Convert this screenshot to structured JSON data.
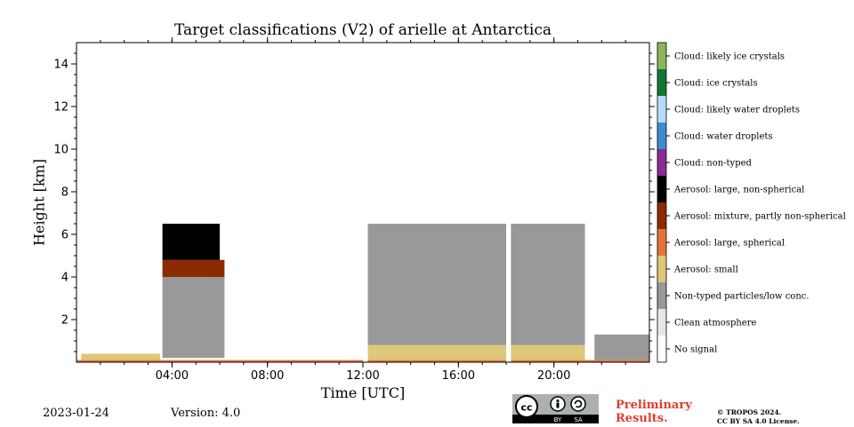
{
  "chart_data": {
    "type": "heatmap",
    "title": "Target classifications (V2) of arielle at Antarctica",
    "xlabel": "Time [UTC]",
    "ylabel": "Height [km]",
    "x_unit": "hours UTC",
    "xlim": [
      0,
      24
    ],
    "ylim": [
      0,
      15
    ],
    "x_ticks": [
      {
        "value": 4,
        "label": "04:00"
      },
      {
        "value": 8,
        "label": "08:00"
      },
      {
        "value": 12,
        "label": "12:00"
      },
      {
        "value": 16,
        "label": "16:00"
      },
      {
        "value": 20,
        "label": "20:00"
      }
    ],
    "y_ticks": [
      {
        "value": 2,
        "label": "2"
      },
      {
        "value": 4,
        "label": "4"
      },
      {
        "value": 6,
        "label": "6"
      },
      {
        "value": 8,
        "label": "8"
      },
      {
        "value": 10,
        "label": "10"
      },
      {
        "value": 12,
        "label": "12"
      },
      {
        "value": 14,
        "label": "14"
      }
    ],
    "grid": false,
    "legend_placement": "right colorbar",
    "classes": [
      {
        "name": "No signal",
        "color": "#ffffff"
      },
      {
        "name": "Clean atmosphere",
        "color": "#e6e6e6"
      },
      {
        "name": "Non-typed particles/low conc.",
        "color": "#999999"
      },
      {
        "name": "Aerosol: small",
        "color": "#dcc878"
      },
      {
        "name": "Aerosol: large, spherical",
        "color": "#e6733c"
      },
      {
        "name": "Aerosol: mixture, partly non-spherical",
        "color": "#8c2a00"
      },
      {
        "name": "Aerosol: large, non-spherical",
        "color": "#000000"
      },
      {
        "name": "Cloud: non-typed",
        "color": "#8c2a96"
      },
      {
        "name": "Cloud: water droplets",
        "color": "#3c8cd2"
      },
      {
        "name": "Cloud: likely water droplets",
        "color": "#b4dcfa"
      },
      {
        "name": "Cloud: ice crystals",
        "color": "#117733"
      },
      {
        "name": "Cloud: likely ice crystals",
        "color": "#8cb45a"
      }
    ],
    "regions": [
      {
        "class": "Non-typed particles/low conc.",
        "x": [
          3.6,
          6.2
        ],
        "y": [
          0.2,
          4.0
        ]
      },
      {
        "class": "Aerosol: mixture, partly non-spherical",
        "x": [
          3.6,
          6.2
        ],
        "y": [
          4.0,
          4.8
        ]
      },
      {
        "class": "Aerosol: large, non-spherical",
        "x": [
          3.6,
          6.0
        ],
        "y": [
          4.8,
          6.5
        ]
      },
      {
        "class": "Non-typed particles/low conc.",
        "x": [
          12.2,
          21.3
        ],
        "y": [
          0.8,
          6.5
        ]
      },
      {
        "class": "Aerosol: small",
        "x": [
          12.2,
          21.3
        ],
        "y": [
          0.1,
          0.8
        ]
      },
      {
        "class": "Non-typed particles/low conc.",
        "x": [
          21.7,
          24.0
        ],
        "y": [
          0.1,
          1.3
        ]
      },
      {
        "class": "Aerosol: small",
        "x": [
          0.2,
          3.5
        ],
        "y": [
          0.1,
          0.4
        ]
      },
      {
        "class": "Aerosol: large, spherical",
        "x": [
          0.0,
          24.0
        ],
        "y": [
          0.0,
          0.1
        ]
      }
    ],
    "gaps": [
      {
        "x": [
          18.0,
          18.2
        ]
      },
      {
        "x": [
          12.0,
          12.2
        ]
      }
    ]
  },
  "footer": {
    "date": "2023-01-24",
    "version": "Version: 4.0",
    "preliminary_line1": "Preliminary",
    "preliminary_line2": "Results.",
    "copyright_line1": "© TROPOS 2024.",
    "copyright_line2": "CC BY SA 4.0 License.",
    "cc_by": "BY",
    "cc_sa": "SA",
    "cc_mark": "cc"
  }
}
